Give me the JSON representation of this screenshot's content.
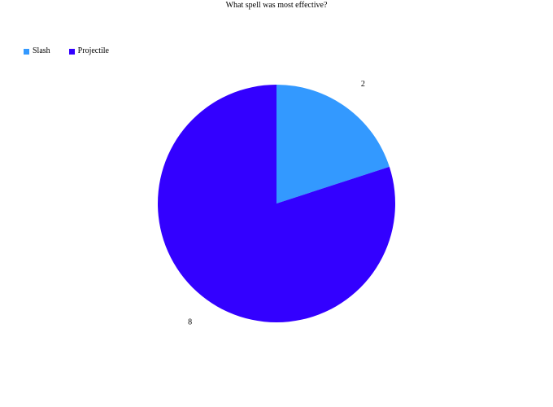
{
  "chart_data": {
    "type": "pie",
    "title": "What spell was most effective?",
    "categories": [
      "Slash",
      "Projectile"
    ],
    "values": [
      2,
      8
    ],
    "colors": [
      "#3399ff",
      "#3300ff"
    ],
    "data_labels": [
      "2",
      "8"
    ],
    "legend_placement": "top-left",
    "start_angle_deg": 0,
    "direction": "clockwise"
  }
}
